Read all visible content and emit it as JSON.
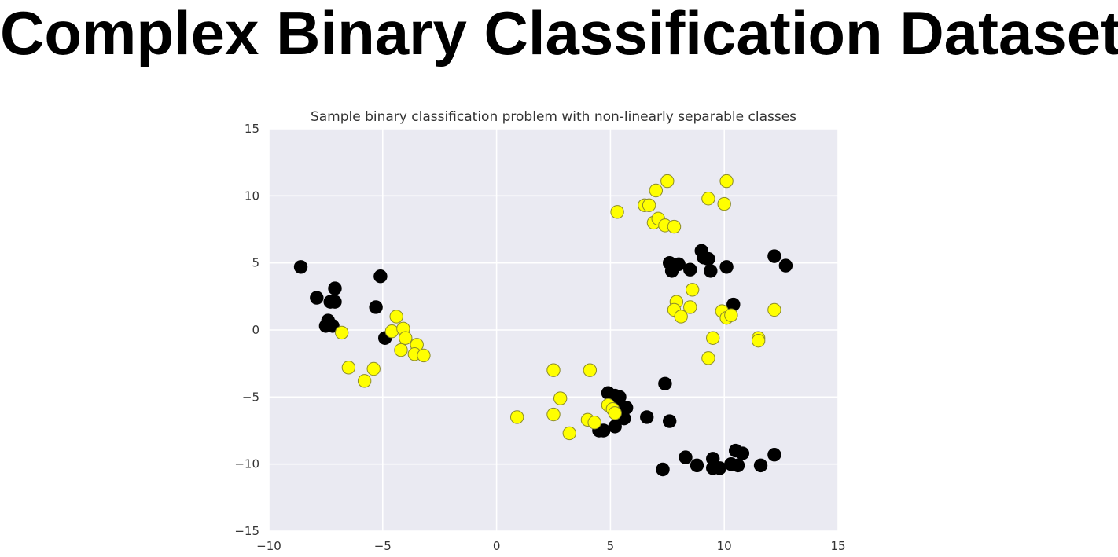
{
  "slide": {
    "title": "Complex Binary Classification Dataset"
  },
  "colors": {
    "plot_background": "#eaeaf2",
    "grid": "#ffffff",
    "class_0": "#000000",
    "class_1": "#ffff00",
    "class_1_edge": "#8c8c2a",
    "text": "#333333"
  },
  "chart_data": {
    "type": "scatter",
    "title": "Sample binary classification problem with non-linearly separable classes",
    "xlabel": "",
    "ylabel": "",
    "xlim": [
      -10,
      15
    ],
    "ylim": [
      -15,
      15
    ],
    "xticks": [
      -10,
      -5,
      0,
      5,
      10,
      15
    ],
    "yticks": [
      -15,
      -10,
      -5,
      0,
      5,
      10,
      15
    ],
    "xtick_labels": [
      "−10",
      "−5",
      "0",
      "5",
      "10",
      "15"
    ],
    "ytick_labels": [
      "−15",
      "−10",
      "−5",
      "0",
      "5",
      "10",
      "15"
    ],
    "grid": true,
    "legend": "none",
    "series": [
      {
        "color": "#000000",
        "points": [
          [
            -8.6,
            4.7
          ],
          [
            -7.9,
            2.4
          ],
          [
            -7.3,
            2.1
          ],
          [
            -7.1,
            2.1
          ],
          [
            -7.1,
            3.1
          ],
          [
            -7.4,
            0.7
          ],
          [
            -7.5,
            0.3
          ],
          [
            -7.2,
            0.3
          ],
          [
            -5.3,
            1.7
          ],
          [
            -5.1,
            4.0
          ],
          [
            -4.9,
            -0.6
          ],
          [
            4.9,
            -4.7
          ],
          [
            5.2,
            -4.9
          ],
          [
            5.4,
            -5.0
          ],
          [
            5.4,
            -5.6
          ],
          [
            5.7,
            -5.8
          ],
          [
            5.6,
            -6.6
          ],
          [
            5.2,
            -7.2
          ],
          [
            4.7,
            -7.5
          ],
          [
            4.5,
            -7.5
          ],
          [
            6.6,
            -6.5
          ],
          [
            7.6,
            -6.8
          ],
          [
            7.4,
            -4.0
          ],
          [
            7.6,
            5.0
          ],
          [
            7.7,
            4.4
          ],
          [
            8.0,
            4.9
          ],
          [
            8.5,
            4.5
          ],
          [
            9.0,
            5.9
          ],
          [
            9.1,
            5.4
          ],
          [
            9.3,
            5.3
          ],
          [
            9.4,
            4.4
          ],
          [
            10.1,
            4.7
          ],
          [
            10.4,
            1.9
          ],
          [
            12.2,
            5.5
          ],
          [
            12.7,
            4.8
          ],
          [
            7.3,
            -10.4
          ],
          [
            8.3,
            -9.5
          ],
          [
            8.8,
            -10.1
          ],
          [
            9.5,
            -9.6
          ],
          [
            9.5,
            -10.3
          ],
          [
            9.8,
            -10.3
          ],
          [
            10.3,
            -10.0
          ],
          [
            10.5,
            -9.0
          ],
          [
            10.6,
            -10.1
          ],
          [
            10.8,
            -9.2
          ],
          [
            11.6,
            -10.1
          ],
          [
            12.2,
            -9.3
          ]
        ]
      },
      {
        "color": "#ffff00",
        "points": [
          [
            -6.8,
            -0.2
          ],
          [
            -4.4,
            1.0
          ],
          [
            -4.6,
            -0.1
          ],
          [
            -4.1,
            0.1
          ],
          [
            -4.0,
            -0.6
          ],
          [
            -3.5,
            -1.1
          ],
          [
            -4.2,
            -1.5
          ],
          [
            -3.6,
            -1.8
          ],
          [
            -3.2,
            -1.9
          ],
          [
            -6.5,
            -2.8
          ],
          [
            -5.4,
            -2.9
          ],
          [
            -5.8,
            -3.8
          ],
          [
            0.9,
            -6.5
          ],
          [
            2.5,
            -3.0
          ],
          [
            2.5,
            -6.3
          ],
          [
            2.8,
            -5.1
          ],
          [
            3.2,
            -7.7
          ],
          [
            4.1,
            -3.0
          ],
          [
            4.0,
            -6.7
          ],
          [
            4.3,
            -6.9
          ],
          [
            4.9,
            -5.6
          ],
          [
            5.1,
            -5.9
          ],
          [
            5.2,
            -6.2
          ],
          [
            5.3,
            8.8
          ],
          [
            6.5,
            9.3
          ],
          [
            6.7,
            9.3
          ],
          [
            7.0,
            10.4
          ],
          [
            7.5,
            11.1
          ],
          [
            6.9,
            8.0
          ],
          [
            7.1,
            8.3
          ],
          [
            7.4,
            7.8
          ],
          [
            7.8,
            7.7
          ],
          [
            9.3,
            9.8
          ],
          [
            10.0,
            9.4
          ],
          [
            10.1,
            11.1
          ],
          [
            7.9,
            2.1
          ],
          [
            7.8,
            1.5
          ],
          [
            8.1,
            1.0
          ],
          [
            8.5,
            1.7
          ],
          [
            8.6,
            3.0
          ],
          [
            9.5,
            -0.6
          ],
          [
            9.9,
            1.4
          ],
          [
            10.1,
            0.9
          ],
          [
            10.3,
            1.1
          ],
          [
            9.3,
            -2.1
          ],
          [
            11.5,
            -0.6
          ],
          [
            11.5,
            -0.8
          ],
          [
            12.2,
            1.5
          ]
        ]
      }
    ]
  }
}
